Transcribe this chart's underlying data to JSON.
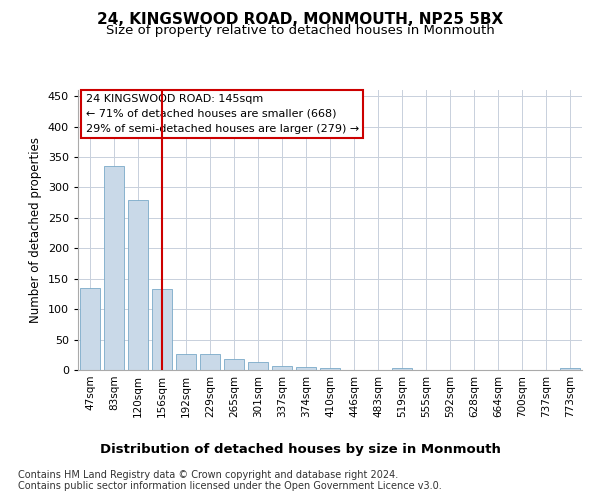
{
  "title": "24, KINGSWOOD ROAD, MONMOUTH, NP25 5BX",
  "subtitle": "Size of property relative to detached houses in Monmouth",
  "xlabel": "Distribution of detached houses by size in Monmouth",
  "ylabel": "Number of detached properties",
  "categories": [
    "47sqm",
    "83sqm",
    "120sqm",
    "156sqm",
    "192sqm",
    "229sqm",
    "265sqm",
    "301sqm",
    "337sqm",
    "374sqm",
    "410sqm",
    "446sqm",
    "483sqm",
    "519sqm",
    "555sqm",
    "592sqm",
    "628sqm",
    "664sqm",
    "700sqm",
    "737sqm",
    "773sqm"
  ],
  "values": [
    135,
    335,
    280,
    133,
    27,
    27,
    18,
    13,
    6,
    5,
    3,
    0,
    0,
    3,
    0,
    0,
    0,
    0,
    0,
    0,
    3
  ],
  "bar_color": "#c9d9e8",
  "bar_edge_color": "#7aaac8",
  "red_line_index": 3,
  "annotation_line1": "24 KINGSWOOD ROAD: 145sqm",
  "annotation_line2": "← 71% of detached houses are smaller (668)",
  "annotation_line3": "29% of semi-detached houses are larger (279) →",
  "annotation_box_color": "#ffffff",
  "annotation_box_edge_color": "#cc0000",
  "red_line_color": "#cc0000",
  "ylim": [
    0,
    460
  ],
  "yticks": [
    0,
    50,
    100,
    150,
    200,
    250,
    300,
    350,
    400,
    450
  ],
  "footer_line1": "Contains HM Land Registry data © Crown copyright and database right 2024.",
  "footer_line2": "Contains public sector information licensed under the Open Government Licence v3.0.",
  "bg_color": "#ffffff",
  "grid_color": "#c8d0dc"
}
